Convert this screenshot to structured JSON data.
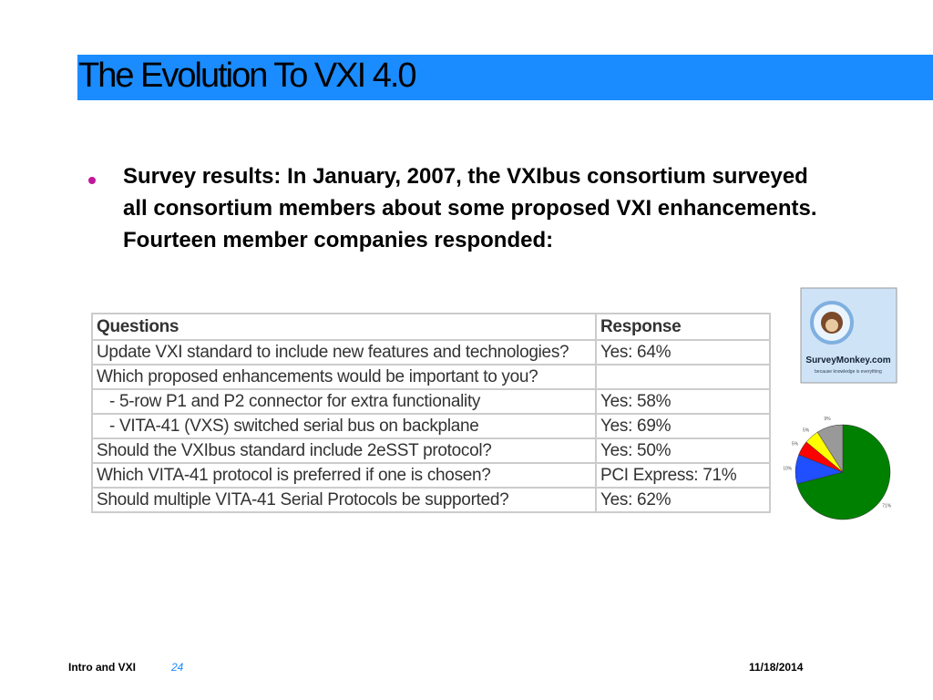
{
  "header": {
    "title": "The Evolution To VXI 4.0"
  },
  "bullet": "Survey results: In January, 2007, the VXIbus consortium surveyed all consortium members about some proposed VXI enhancements. Fourteen member companies responded:",
  "table": {
    "header": [
      "Questions",
      "Response"
    ],
    "rows": [
      [
        "Update VXI standard to include new features and technologies?",
        "Yes: 64%"
      ],
      [
        "Which proposed enhancements would be important to you?"
      ],
      [
        "- 5-row P1 and P2 connector for extra functionality",
        "Yes: 58%"
      ],
      [
        "- VITA-41 (VXS) switched serial bus on backplane",
        "Yes: 69%"
      ],
      [
        "Should the VXIbus standard include 2eSST protocol?",
        "Yes: 50%"
      ],
      [
        "Which VITA-41 protocol is preferred if one is chosen?",
        "PCI Express: 71%"
      ],
      [
        "Should multiple VITA-41 Serial Protocols be supported?",
        "Yes: 62%"
      ]
    ]
  },
  "logo": {
    "name": "SurveyMonkey.com",
    "tagline": "because knowledge is everything"
  },
  "chart_data": {
    "type": "pie",
    "values": [
      71,
      10,
      5,
      5,
      9
    ],
    "value_labels": [
      "71%",
      "10%",
      "5%",
      "5%",
      "9%"
    ],
    "colors": [
      "#008000",
      "#1f4fff",
      "#ff0000",
      "#ffff00",
      "#999999"
    ]
  },
  "footer": {
    "left": "Intro and VXI",
    "page": "24",
    "date": "11/18/2014"
  }
}
